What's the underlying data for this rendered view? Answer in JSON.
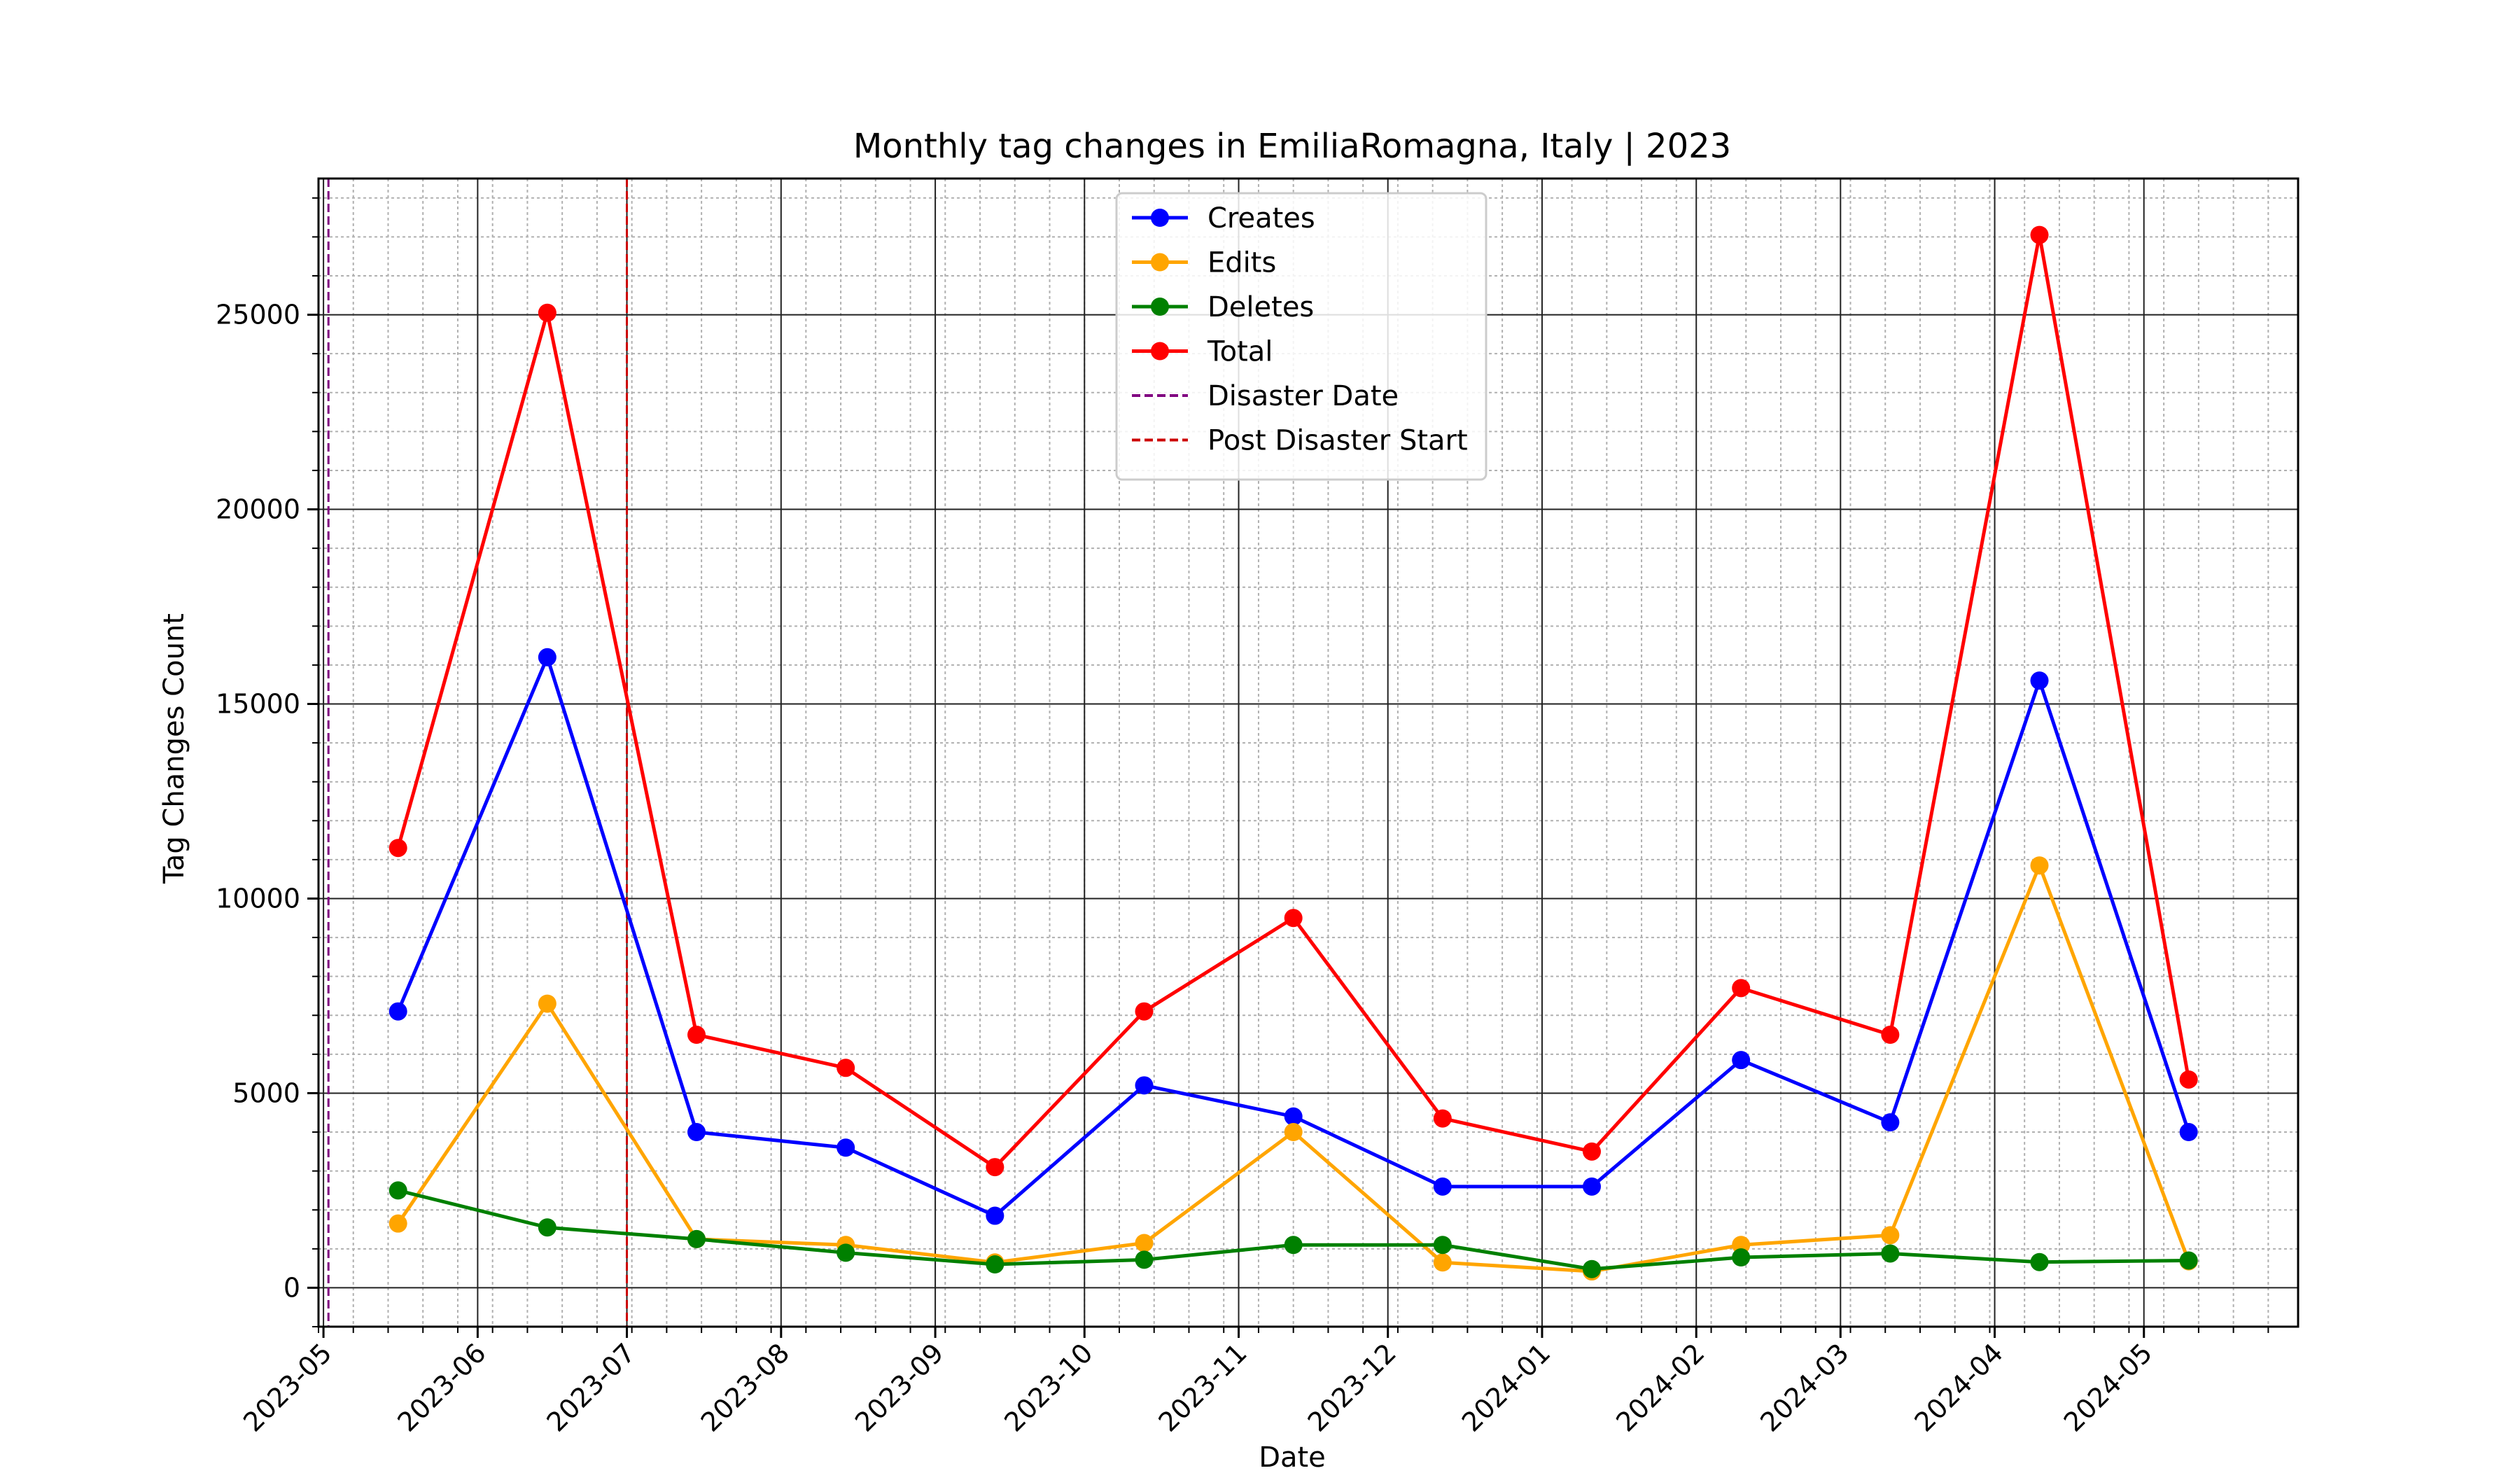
{
  "chart_data": {
    "type": "line",
    "title": "Monthly tag changes in EmiliaRomagna, Italy | 2023",
    "xlabel": "Date",
    "ylabel": "Tag Changes Count",
    "x": [
      "2023-05-16",
      "2023-06-15",
      "2023-07-15",
      "2023-08-14",
      "2023-09-13",
      "2023-10-13",
      "2023-11-12",
      "2023-12-12",
      "2024-01-11",
      "2024-02-10",
      "2024-03-11",
      "2024-04-10",
      "2024-05-10"
    ],
    "series": [
      {
        "name": "Creates",
        "color": "#0000ff",
        "values": [
          7100,
          16200,
          4000,
          3600,
          1850,
          5200,
          4400,
          2600,
          2600,
          5850,
          4250,
          15600,
          4000
        ]
      },
      {
        "name": "Edits",
        "color": "#ffa500",
        "values": [
          1650,
          7300,
          1250,
          1100,
          650,
          1150,
          4000,
          650,
          420,
          1100,
          1350,
          10850,
          680
        ]
      },
      {
        "name": "Deletes",
        "color": "#008000",
        "values": [
          2500,
          1550,
          1250,
          900,
          600,
          720,
          1100,
          1100,
          480,
          780,
          880,
          660,
          700
        ]
      },
      {
        "name": "Total",
        "color": "#ff0000",
        "values": [
          11300,
          25050,
          6500,
          5650,
          3100,
          7100,
          9500,
          4350,
          3500,
          7700,
          6500,
          27050,
          5350
        ]
      }
    ],
    "vlines": [
      {
        "name": "Disaster Date",
        "date": "2023-05-02",
        "color": "#800080"
      },
      {
        "name": "Post Disaster Start",
        "date": "2023-07-01",
        "color": "#cc0000"
      }
    ],
    "x_ticks": [
      "2023-05",
      "2023-06",
      "2023-07",
      "2023-08",
      "2023-09",
      "2023-10",
      "2023-11",
      "2023-12",
      "2024-01",
      "2024-02",
      "2024-03",
      "2024-04",
      "2024-05"
    ],
    "x_range": [
      "2023-04-30",
      "2024-06-01"
    ],
    "y_ticks": [
      "0",
      "5000",
      "10000",
      "15000",
      "20000",
      "25000"
    ],
    "ylim": [
      -1000,
      28500
    ],
    "grid": true,
    "legend_position": "top-center"
  }
}
